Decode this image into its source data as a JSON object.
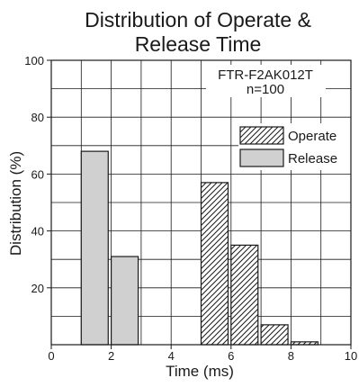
{
  "chart_data": {
    "type": "bar",
    "title_lines": [
      "Distribution of Operate &",
      "Release Time"
    ],
    "xlabel": "Time (ms)",
    "ylabel": "Distribution (%)",
    "xlim": [
      0,
      10
    ],
    "ylim": [
      0,
      100
    ],
    "x_ticks": [
      0,
      2,
      4,
      6,
      8,
      10
    ],
    "y_ticks": [
      20,
      40,
      60,
      80,
      100
    ],
    "grid": true,
    "annotation_lines": [
      "FTR-F2AK012T",
      "n=100"
    ],
    "legend_position": "top-right",
    "series": [
      {
        "name": "Operate",
        "pattern": "diagonal-hatch",
        "bars": [
          {
            "x_start": 5.0,
            "x_end": 5.9,
            "value": 57
          },
          {
            "x_start": 6.0,
            "x_end": 6.9,
            "value": 35
          },
          {
            "x_start": 7.0,
            "x_end": 7.9,
            "value": 7
          },
          {
            "x_start": 8.0,
            "x_end": 8.9,
            "value": 1
          }
        ]
      },
      {
        "name": "Release",
        "color": "#d0d0d0",
        "bars": [
          {
            "x_start": 1.0,
            "x_end": 1.9,
            "value": 68
          },
          {
            "x_start": 2.0,
            "x_end": 2.9,
            "value": 31
          }
        ]
      }
    ]
  }
}
